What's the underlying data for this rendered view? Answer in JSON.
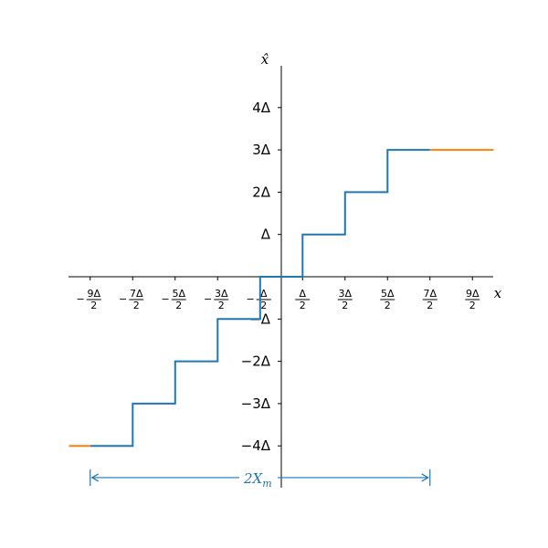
{
  "chart_data": {
    "type": "line",
    "step_unit": "Δ",
    "title": "",
    "xlabel": "x",
    "ylabel": "x̂",
    "xlim": [
      -5.0,
      5.0
    ],
    "ylim": [
      -5.0,
      5.0
    ],
    "grid": false,
    "x_ticks": [
      {
        "value": -4.5,
        "sign": "−",
        "num": "9Δ",
        "den": "2"
      },
      {
        "value": -3.5,
        "sign": "−",
        "num": "7Δ",
        "den": "2"
      },
      {
        "value": -2.5,
        "sign": "−",
        "num": "5Δ",
        "den": "2"
      },
      {
        "value": -1.5,
        "sign": "−",
        "num": "3Δ",
        "den": "2"
      },
      {
        "value": -0.5,
        "sign": "−",
        "num": "Δ",
        "den": "2"
      },
      {
        "value": 0.5,
        "sign": "",
        "num": "Δ",
        "den": "2"
      },
      {
        "value": 1.5,
        "sign": "",
        "num": "3Δ",
        "den": "2"
      },
      {
        "value": 2.5,
        "sign": "",
        "num": "5Δ",
        "den": "2"
      },
      {
        "value": 3.5,
        "sign": "",
        "num": "7Δ",
        "den": "2"
      },
      {
        "value": 4.5,
        "sign": "",
        "num": "9Δ",
        "den": "2"
      }
    ],
    "y_ticks": [
      {
        "value": 4,
        "label": "4Δ"
      },
      {
        "value": 3,
        "label": "3Δ"
      },
      {
        "value": 2,
        "label": "2Δ"
      },
      {
        "value": 1,
        "label": "Δ"
      },
      {
        "value": -1,
        "label": "−Δ"
      },
      {
        "value": -2,
        "label": "−2Δ"
      },
      {
        "value": -3,
        "label": "−3Δ"
      },
      {
        "value": -4,
        "label": "−4Δ"
      }
    ],
    "series": [
      {
        "color": "#1f77b4",
        "style": "step",
        "x": [
          -4.5,
          -3.5,
          -3.5,
          -2.5,
          -2.5,
          -1.5,
          -1.5,
          -0.5,
          -0.5,
          0.5,
          0.5,
          1.5,
          1.5,
          2.5,
          2.5,
          3.5
        ],
        "y": [
          -4,
          -4,
          -3,
          -3,
          -2,
          -2,
          -1,
          -1,
          0,
          0,
          1,
          1,
          2,
          2,
          3,
          3
        ]
      },
      {
        "color": "#ff7f0e",
        "style": "flat",
        "x": [
          -5.0,
          -4.5
        ],
        "y": [
          -4,
          -4
        ]
      },
      {
        "color": "#ff7f0e",
        "style": "flat",
        "x": [
          3.5,
          5.0
        ],
        "y": [
          3,
          3
        ]
      }
    ],
    "annotations": [
      {
        "type": "range-arrow",
        "x_from": -4.5,
        "x_to": 3.5,
        "y": -4.75,
        "label": "2X",
        "label_sub": "m",
        "color": "#1f77b4"
      }
    ]
  }
}
